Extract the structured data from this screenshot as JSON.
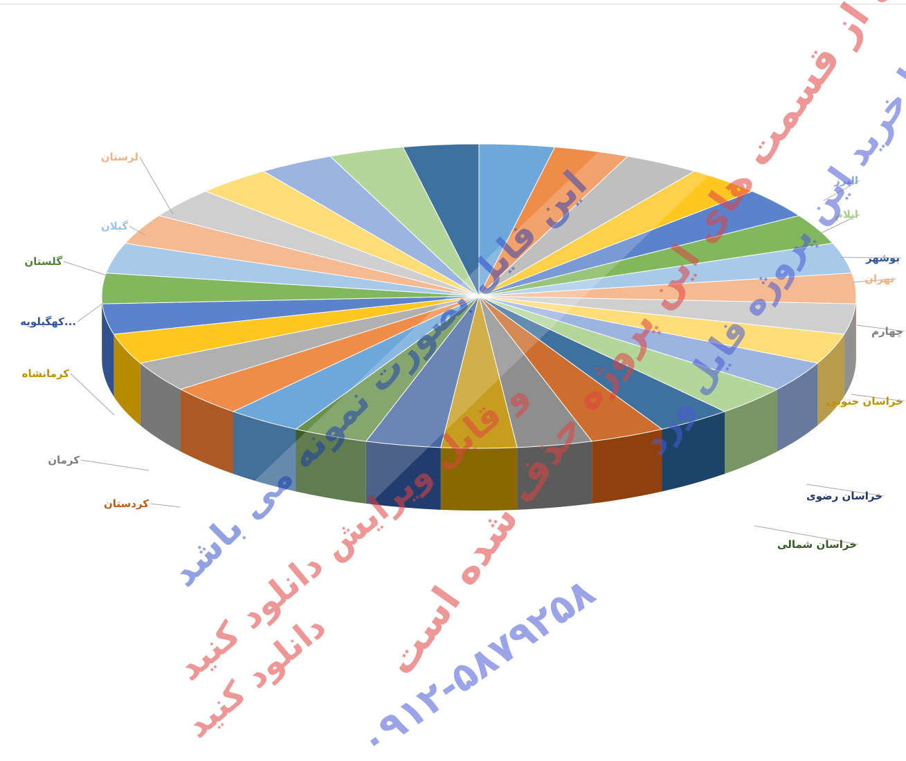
{
  "chart_data": {
    "type": "pie",
    "style": "3d",
    "labels_visible": [
      {
        "name": "البرز",
        "color": "#8eaadb"
      },
      {
        "name": "ایلام",
        "color": "#a9d18e"
      },
      {
        "name": "بوشهر",
        "color": "#2f5597"
      },
      {
        "name": "تهران",
        "color": "#f4b183"
      },
      {
        "name": "چهارم",
        "color": "#7f7f7f"
      },
      {
        "name": "خراسان جنوبی",
        "color": "#bf9000"
      },
      {
        "name": "خراسان رضوی",
        "color": "#1f3864"
      },
      {
        "name": "خراسان شمالی",
        "color": "#385723"
      },
      {
        "name": "کردستان",
        "color": "#c55a11"
      },
      {
        "name": "کرمان",
        "color": "#7f7f7f"
      },
      {
        "name": "کرمانشاه",
        "color": "#bf9000"
      },
      {
        "name": "کهگیلویه...",
        "color": "#2f5597"
      },
      {
        "name": "گلستان",
        "color": "#548235"
      },
      {
        "name": "گیلان",
        "color": "#9dc3e6"
      },
      {
        "name": "لرستان",
        "color": "#f4b183"
      }
    ],
    "slice_palette": [
      "#5b9bd5",
      "#ed7d31",
      "#a5a5a5",
      "#ffc000",
      "#4472c4",
      "#70ad47",
      "#9dc3e6",
      "#f4b183",
      "#c9c9c9",
      "#ffd966",
      "#8faadc",
      "#a9d18e",
      "#255e91",
      "#c55a11",
      "#7f7f7f",
      "#bf9000",
      "#2f5597",
      "#548235"
    ],
    "slice_count": 31,
    "values_note_hidden": true
  },
  "watermark": {
    "lines": [
      "بر خی از قسمت های این پروژه حذف شده است",
      "با خرید این پروژه فایل ورد",
      "این فایل بصورت نمونه می باشد",
      "و قابل ویرایش دانلود کنید",
      "۰۹۱۲-۵۸۷۹۲۵۸",
      "دانلود کنید"
    ]
  }
}
